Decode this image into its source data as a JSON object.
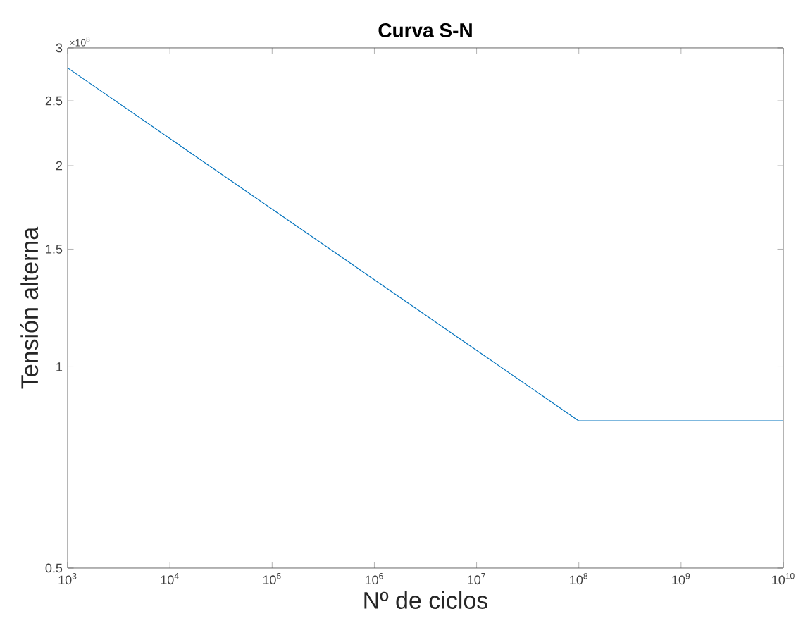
{
  "chart_data": {
    "type": "line",
    "title": "Curva S-N",
    "xlabel": "Nº de ciclos",
    "ylabel": "Tensión alterna",
    "annotations": [
      "×10$^{8}$"
    ],
    "x": [
      1000,
      100000000,
      10000000000
    ],
    "series": [
      {
        "color": "#0072bd",
        "values": [
          2.8,
          0.83,
          0.83
        ]
      }
    ],
    "log": "xy",
    "grid": false,
    "xlim": [
      1000,
      10000000000
    ],
    "xticks": [
      {
        "value": 1000,
        "label": "10$^{3}$"
      },
      {
        "value": 10000,
        "label": "10$^{4}$"
      },
      {
        "value": 100000,
        "label": "10$^{5}$"
      },
      {
        "value": 1000000,
        "label": "10$^{6}$"
      },
      {
        "value": 10000000,
        "label": "10$^{7}$"
      },
      {
        "value": 100000000,
        "label": "10$^{8}$"
      },
      {
        "value": 1000000000,
        "label": "10$^{9}$"
      },
      {
        "value": 10000000000,
        "label": "10$^{10}$"
      }
    ],
    "ylim": [
      0.5,
      3
    ],
    "yticks": [
      0.5,
      1,
      1.5,
      2,
      2.5,
      3
    ]
  }
}
